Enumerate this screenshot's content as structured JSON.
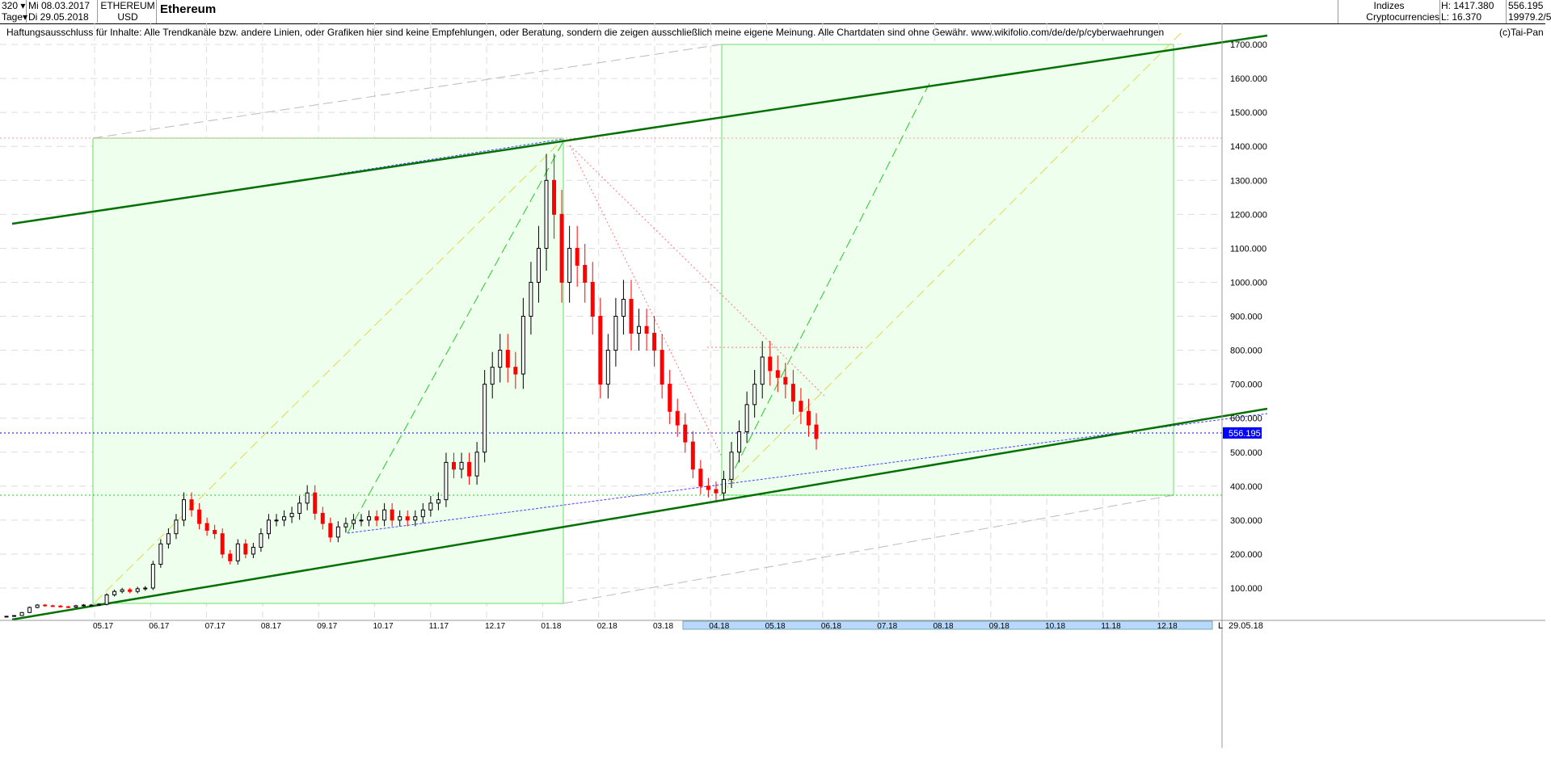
{
  "header": {
    "period": "320",
    "unit": "Tage",
    "date_from": "Mi 08.03.2017",
    "date_to": "Di 29.05.2018",
    "symbol": "ETHEREUM",
    "currency": "USD",
    "title": "Ethereum",
    "index_label": "Indizes",
    "index_name": "Cryptocurrencies",
    "high": "H: 1417.380",
    "low": "L: 16.370",
    "last": "556.195",
    "volume": "19979.2/5"
  },
  "disclaimer": "Haftungsausschluss für Inhalte: Alle Trendkanäle bzw. andere Linien, oder Grafiken hier sind keine Empfehlungen, oder Beratung, sondern die zeigen ausschließlich meine eigene Meinung. Alle Chartdaten sind ohne Gewähr.  www.wikifolio.com/de/de/p/cyberwaehrungen",
  "copyright": "(c)Tai-Pan",
  "chart_data": {
    "type": "candlestick",
    "title": "Ethereum",
    "yticks": [
      "1700.000",
      "1600.000",
      "1500.000",
      "1400.000",
      "1300.000",
      "1200.000",
      "1100.000",
      "1000.000",
      "900.000",
      "800.000",
      "700.000",
      "600.000",
      "500.000",
      "400.000",
      "300.000",
      "200.000",
      "100.000"
    ],
    "ylim": [
      50,
      1750
    ],
    "xticks": [
      "05.17",
      "06.17",
      "07.17",
      "08.17",
      "09.17",
      "10.17",
      "11.17",
      "12.17",
      "01.18",
      "02.18",
      "03.18",
      "04.18",
      "05.18",
      "06.18",
      "07.18",
      "08.18",
      "09.18",
      "10.18",
      "11.18",
      "12.18"
    ],
    "x_end_label": "29.05.18",
    "scroll_label": "L",
    "last_price": 556.195,
    "last_price_label": "556.195",
    "closes": [
      17,
      19,
      28,
      43,
      50,
      48,
      47,
      45,
      44,
      48,
      50,
      50,
      52,
      80,
      90,
      95,
      90,
      98,
      100,
      170,
      230,
      260,
      300,
      360,
      330,
      290,
      270,
      260,
      200,
      180,
      230,
      200,
      220,
      260,
      300,
      300,
      310,
      320,
      350,
      380,
      320,
      290,
      250,
      280,
      290,
      300,
      300,
      310,
      300,
      330,
      300,
      310,
      300,
      310,
      330,
      350,
      360,
      470,
      450,
      470,
      430,
      500,
      700,
      750,
      800,
      750,
      730,
      900,
      1000,
      1100,
      1300,
      1200,
      1000,
      1100,
      1050,
      1000,
      900,
      700,
      800,
      900,
      950,
      850,
      870,
      850,
      800,
      700,
      620,
      580,
      530,
      450,
      400,
      390,
      380,
      420,
      500,
      560,
      640,
      700,
      780,
      740,
      720,
      700,
      650,
      620,
      580,
      540
    ],
    "colors": {
      "up": "#000000",
      "down": "#ff0000",
      "channel": "#007000",
      "last_line": "#0000ff",
      "support": "#00cc00",
      "zone": "#eaffea"
    }
  }
}
